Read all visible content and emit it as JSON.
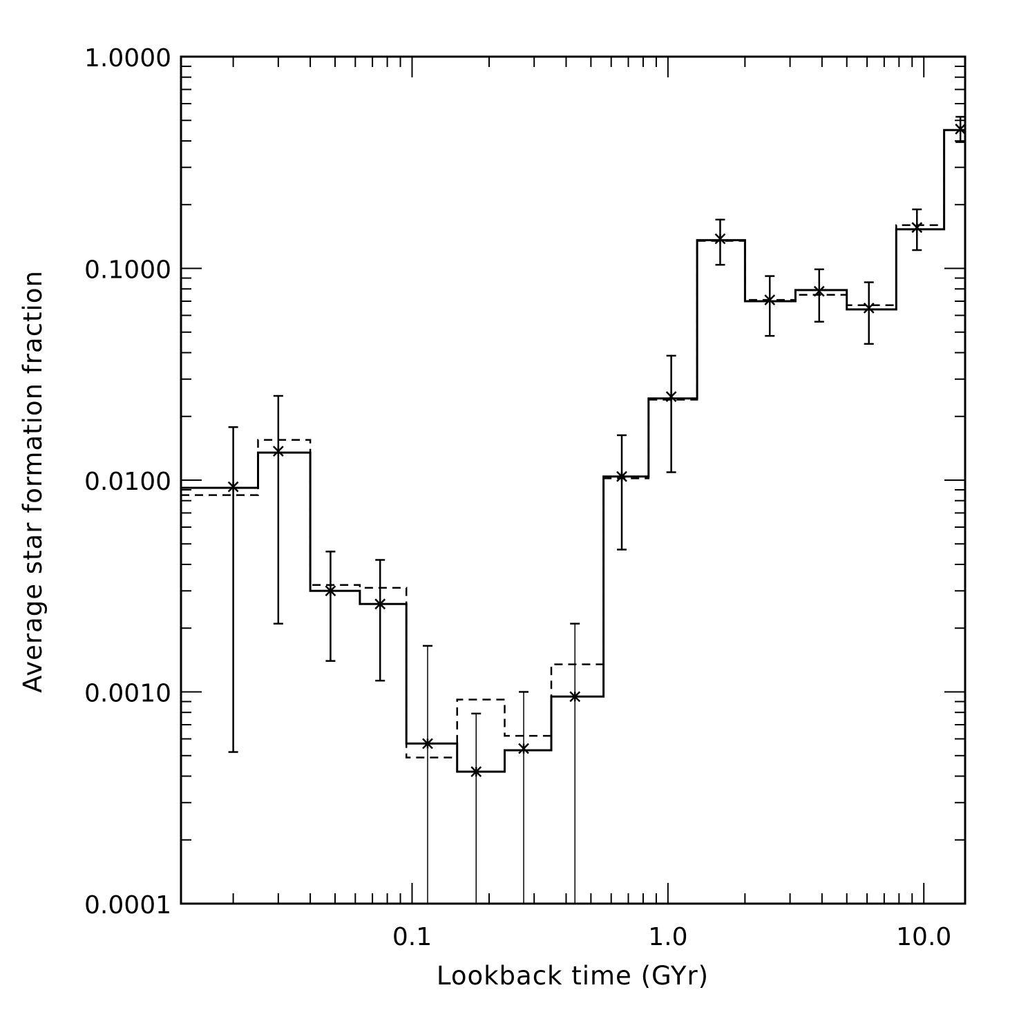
{
  "chart_data": {
    "type": "line",
    "xlabel": "Lookback time (GYr)",
    "ylabel": "Average star formation fraction",
    "xscale": "log",
    "yscale": "log",
    "xlim": [
      0.0125,
      14.5
    ],
    "ylim": [
      0.0001,
      1.0
    ],
    "xticks": [
      {
        "value": 0.1,
        "label": "0.1"
      },
      {
        "value": 1.0,
        "label": "1.0"
      },
      {
        "value": 10.0,
        "label": "10.0"
      }
    ],
    "yticks": [
      {
        "value": 1.0,
        "label": "1.0000"
      },
      {
        "value": 0.1,
        "label": "0.1000"
      },
      {
        "value": 0.01,
        "label": "0.0100"
      },
      {
        "value": 0.001,
        "label": "0.0010"
      },
      {
        "value": 0.0001,
        "label": "0.0001"
      }
    ],
    "bin_edges": [
      0.0125,
      0.025,
      0.04,
      0.0625,
      0.095,
      0.15,
      0.23,
      0.35,
      0.56,
      0.84,
      1.3,
      2.0,
      3.15,
      5.0,
      7.8,
      12.0,
      14.5
    ],
    "series": [
      {
        "style": "solid-step",
        "values": [
          0.0092,
          0.0135,
          0.003,
          0.0026,
          0.00057,
          0.00042,
          0.00053,
          0.00095,
          0.0104,
          0.0243,
          0.136,
          0.07,
          0.079,
          0.064,
          0.153,
          0.45
        ]
      },
      {
        "style": "dashed-step",
        "values": [
          0.0085,
          0.0155,
          0.0032,
          0.0031,
          0.00049,
          0.00092,
          0.00062,
          0.00135,
          0.0102,
          0.024,
          0.135,
          0.071,
          0.075,
          0.067,
          0.16,
          0.45
        ]
      },
      {
        "style": "points-with-errorbars",
        "points": [
          {
            "x": 0.02,
            "y": 0.0093,
            "ylow": 0.00052,
            "yhigh": 0.0178
          },
          {
            "x": 0.03,
            "y": 0.0137,
            "ylow": 0.0021,
            "yhigh": 0.025
          },
          {
            "x": 0.048,
            "y": 0.003,
            "ylow": 0.0014,
            "yhigh": 0.0046
          },
          {
            "x": 0.075,
            "y": 0.0026,
            "ylow": 0.00113,
            "yhigh": 0.0042
          },
          {
            "x": 0.115,
            "y": 0.00057,
            "ylow": 0.0001,
            "yhigh": 0.00165
          },
          {
            "x": 0.178,
            "y": 0.00042,
            "ylow": 0.0001,
            "yhigh": 0.00079
          },
          {
            "x": 0.273,
            "y": 0.00054,
            "ylow": 0.0001,
            "yhigh": 0.001
          },
          {
            "x": 0.433,
            "y": 0.00095,
            "ylow": 0.0001,
            "yhigh": 0.0021
          },
          {
            "x": 0.66,
            "y": 0.0104,
            "ylow": 0.0047,
            "yhigh": 0.0163
          },
          {
            "x": 1.03,
            "y": 0.0248,
            "ylow": 0.0109,
            "yhigh": 0.0387
          },
          {
            "x": 1.6,
            "y": 0.138,
            "ylow": 0.104,
            "yhigh": 0.17
          },
          {
            "x": 2.5,
            "y": 0.071,
            "ylow": 0.048,
            "yhigh": 0.092
          },
          {
            "x": 3.9,
            "y": 0.078,
            "ylow": 0.056,
            "yhigh": 0.099
          },
          {
            "x": 6.1,
            "y": 0.065,
            "ylow": 0.044,
            "yhigh": 0.086
          },
          {
            "x": 9.4,
            "y": 0.156,
            "ylow": 0.122,
            "yhigh": 0.19
          },
          {
            "x": 13.9,
            "y": 0.455,
            "ylow": 0.395,
            "yhigh": 0.52
          }
        ]
      }
    ]
  }
}
